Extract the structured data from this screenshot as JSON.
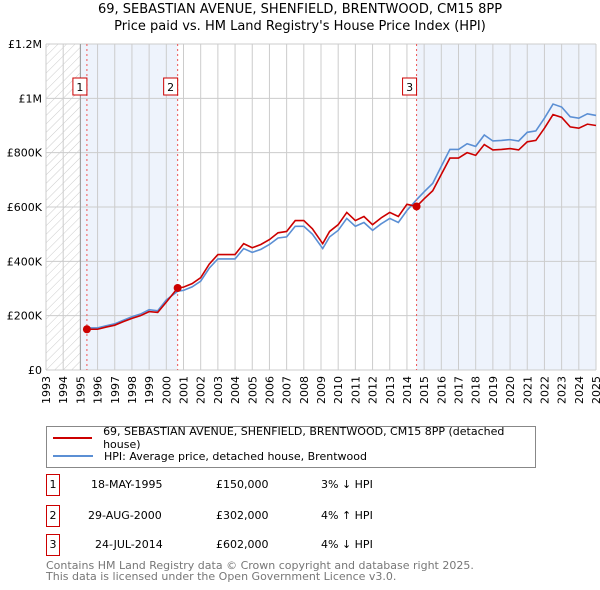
{
  "title": "69, SEBASTIAN AVENUE, SHENFIELD, BRENTWOOD, CM15 8PP",
  "subtitle": "Price paid vs. HM Land Registry's House Price Index (HPI)",
  "chart_data": {
    "type": "line",
    "xlim": [
      1993,
      2025
    ],
    "ylim": [
      0,
      1200000
    ],
    "y_ticks": [
      {
        "v": 0,
        "label": "£0"
      },
      {
        "v": 200000,
        "label": "£200K"
      },
      {
        "v": 400000,
        "label": "£400K"
      },
      {
        "v": 600000,
        "label": "£600K"
      },
      {
        "v": 800000,
        "label": "£800K"
      },
      {
        "v": 1000000,
        "label": "£1M"
      },
      {
        "v": 1200000,
        "label": "£1.2M"
      }
    ],
    "x_ticks": [
      "1993",
      "1994",
      "1995",
      "1996",
      "1997",
      "1998",
      "1999",
      "2000",
      "2001",
      "2002",
      "2003",
      "2004",
      "2005",
      "2006",
      "2007",
      "2008",
      "2009",
      "2010",
      "2011",
      "2012",
      "2013",
      "2014",
      "2015",
      "2016",
      "2017",
      "2018",
      "2019",
      "2020",
      "2021",
      "2022",
      "2023",
      "2024",
      "2025"
    ],
    "grid": true,
    "colors": {
      "price": "#cc0000",
      "hpi": "#5b8fd4",
      "shade": "#eef3fc"
    },
    "series": [
      {
        "name": "69, SEBASTIAN AVENUE, SHENFIELD, BRENTWOOD, CM15 8PP (detached house)",
        "key": "price",
        "x": [
          1995.38,
          1996,
          1996.5,
          1997,
          1997.5,
          1998,
          1998.5,
          1999,
          1999.5,
          2000,
          2000.66,
          2001,
          2001.5,
          2002,
          2002.5,
          2003,
          2003.5,
          2004,
          2004.5,
          2005,
          2005.5,
          2006,
          2006.5,
          2007,
          2007.5,
          2008,
          2008.5,
          2009.1,
          2009.5,
          2010,
          2010.5,
          2011,
          2011.5,
          2012,
          2012.5,
          2013,
          2013.5,
          2014,
          2014.56,
          2015,
          2015.5,
          2016,
          2016.5,
          2017,
          2017.5,
          2018,
          2018.5,
          2019,
          2019.5,
          2020,
          2020.5,
          2021,
          2021.5,
          2022,
          2022.5,
          2023,
          2023.5,
          2024,
          2024.5,
          2025
        ],
        "y": [
          150000,
          150000,
          158000,
          165000,
          178000,
          190000,
          200000,
          215000,
          212000,
          250000,
          302000,
          305000,
          318000,
          340000,
          390000,
          425000,
          425000,
          425000,
          465000,
          450000,
          462000,
          480000,
          505000,
          510000,
          550000,
          550000,
          520000,
          465000,
          510000,
          535000,
          580000,
          550000,
          565000,
          535000,
          560000,
          580000,
          565000,
          610000,
          602000,
          630000,
          660000,
          720000,
          780000,
          780000,
          800000,
          790000,
          830000,
          810000,
          812000,
          815000,
          810000,
          840000,
          845000,
          890000,
          940000,
          930000,
          895000,
          890000,
          905000,
          900000
        ]
      },
      {
        "name": "HPI: Average price, detached house, Brentwood",
        "key": "hpi",
        "x": [
          1995.38,
          1996,
          1996.5,
          1997,
          1997.5,
          1998,
          1998.5,
          1999,
          1999.5,
          2000,
          2000.66,
          2001,
          2001.5,
          2002,
          2002.5,
          2003,
          2003.5,
          2004,
          2004.5,
          2005,
          2005.5,
          2006,
          2006.5,
          2007,
          2007.5,
          2008,
          2008.5,
          2009.1,
          2009.5,
          2010,
          2010.5,
          2011,
          2011.5,
          2012,
          2012.5,
          2013,
          2013.5,
          2014,
          2014.56,
          2015,
          2015.5,
          2016,
          2016.5,
          2017,
          2017.5,
          2018,
          2018.5,
          2019,
          2019.5,
          2020,
          2020.5,
          2021,
          2021.5,
          2022,
          2022.5,
          2023,
          2023.5,
          2024,
          2024.5,
          2025
        ],
        "y": [
          155000,
          155000,
          163000,
          170000,
          183000,
          196000,
          206000,
          222000,
          218000,
          258000,
          290000,
          293000,
          306000,
          327000,
          375000,
          409000,
          409000,
          409000,
          447000,
          433000,
          444000,
          462000,
          486000,
          490000,
          529000,
          529000,
          500000,
          447000,
          490000,
          514000,
          558000,
          529000,
          543000,
          514000,
          538000,
          558000,
          543000,
          587000,
          627000,
          656000,
          687000,
          750000,
          812000,
          812000,
          833000,
          823000,
          865000,
          843000,
          845000,
          848000,
          843000,
          875000,
          880000,
          927000,
          979000,
          968000,
          932000,
          927000,
          943000,
          937000
        ]
      }
    ],
    "sales": [
      {
        "n": "1",
        "x": 1995.38,
        "y": 150000,
        "date": "18-MAY-1995",
        "price": "£150,000",
        "hpi": "3% ↓ HPI"
      },
      {
        "n": "2",
        "x": 2000.66,
        "y": 302000,
        "date": "29-AUG-2000",
        "price": "£302,000",
        "hpi": "4% ↑ HPI"
      },
      {
        "n": "3",
        "x": 2014.56,
        "y": 602000,
        "date": "24-JUL-2014",
        "price": "£602,000",
        "hpi": "4% ↓ HPI"
      }
    ],
    "hatched_before": 1995
  },
  "legend": {
    "price": "69, SEBASTIAN AVENUE, SHENFIELD, BRENTWOOD, CM15 8PP (detached house)",
    "hpi": "HPI: Average price, detached house, Brentwood"
  },
  "footer": {
    "line1": "Contains HM Land Registry data © Crown copyright and database right 2025.",
    "line2": "This data is licensed under the Open Government Licence v3.0."
  }
}
